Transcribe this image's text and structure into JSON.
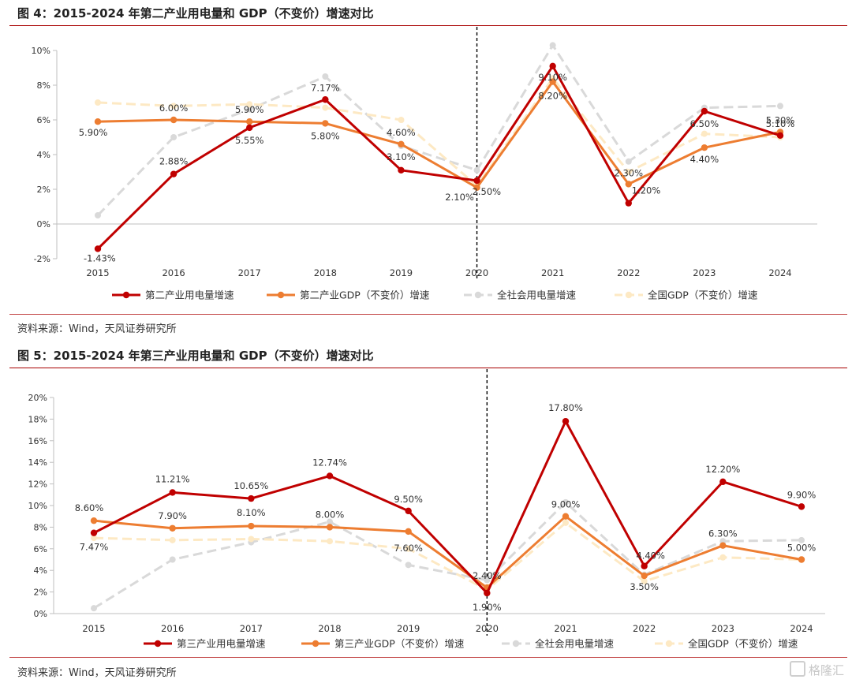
{
  "figures": [
    {
      "title": "图 4：2015-2024 年第二产业用电量和 GDP（不变价）增速对比",
      "source": "资料来源：Wind，天风证券研究所"
    },
    {
      "title": "图 5：2015-2024 年第三产业用电量和 GDP（不变价）增速对比",
      "source": "资料来源：Wind，天风证券研究所"
    }
  ],
  "watermark": "格隆汇",
  "chart_data": [
    {
      "type": "line",
      "title": "",
      "xlabel": "",
      "ylabel": "",
      "categories": [
        "2015",
        "2016",
        "2017",
        "2018",
        "2019",
        "2020",
        "2021",
        "2022",
        "2023",
        "2024"
      ],
      "ylim": [
        -2,
        10
      ],
      "yticks": [
        -2,
        0,
        2,
        4,
        6,
        8,
        10
      ],
      "ytick_labels": [
        "-2%",
        "0%",
        "2%",
        "4%",
        "6%",
        "8%",
        "10%"
      ],
      "divider_at": "2020",
      "legend_position": "bottom",
      "series": [
        {
          "name": "全社会用电量增速",
          "color": "#d9d9d9",
          "style": "dashed",
          "values": [
            0.5,
            5.0,
            6.6,
            8.5,
            4.5,
            3.1,
            10.3,
            3.6,
            6.7,
            6.8
          ]
        },
        {
          "name": "全国GDP（不变价）增速",
          "color": "#fde9c4",
          "style": "dashed",
          "values": [
            7.0,
            6.8,
            6.9,
            6.7,
            6.0,
            2.2,
            8.4,
            3.0,
            5.2,
            5.0
          ]
        },
        {
          "name": "第二产业GDP（不变价）增速",
          "color": "#ed7d31",
          "style": "solid",
          "values": [
            5.9,
            6.0,
            5.9,
            5.8,
            4.6,
            2.1,
            8.2,
            2.3,
            4.4,
            5.3
          ],
          "labels": [
            "5.90%",
            "6.00%",
            "5.90%",
            "5.80%",
            "4.60%",
            "2.10%",
            "8.20%",
            "2.30%",
            "4.40%",
            "5.30%"
          ]
        },
        {
          "name": "第二产业用电量增速",
          "color": "#c00000",
          "style": "solid",
          "values": [
            -1.43,
            2.88,
            5.55,
            7.17,
            3.1,
            2.5,
            9.1,
            1.2,
            6.5,
            5.1
          ],
          "labels": [
            "-1.43%",
            "2.88%",
            "5.55%",
            "7.17%",
            "3.10%",
            "2.50%",
            "9.10%",
            "1.20%",
            "6.50%",
            "5.10%"
          ]
        }
      ],
      "legend_order": [
        "第二产业用电量增速",
        "第二产业GDP（不变价）增速",
        "全社会用电量增速",
        "全国GDP（不变价）增速"
      ]
    },
    {
      "type": "line",
      "title": "",
      "xlabel": "",
      "ylabel": "",
      "categories": [
        "2015",
        "2016",
        "2017",
        "2018",
        "2019",
        "2020",
        "2021",
        "2022",
        "2023",
        "2024"
      ],
      "ylim": [
        0,
        20
      ],
      "yticks": [
        0,
        2,
        4,
        6,
        8,
        10,
        12,
        14,
        16,
        18,
        20
      ],
      "ytick_labels": [
        "0%",
        "2%",
        "4%",
        "6%",
        "8%",
        "10%",
        "12%",
        "14%",
        "16%",
        "18%",
        "20%"
      ],
      "divider_at": "2020",
      "legend_position": "bottom",
      "series": [
        {
          "name": "全社会用电量增速",
          "color": "#d9d9d9",
          "style": "dashed",
          "values": [
            0.5,
            5.0,
            6.6,
            8.5,
            4.5,
            3.1,
            10.3,
            3.6,
            6.7,
            6.8
          ]
        },
        {
          "name": "全国GDP（不变价）增速",
          "color": "#fde9c4",
          "style": "dashed",
          "values": [
            7.0,
            6.8,
            6.9,
            6.7,
            6.0,
            2.2,
            8.4,
            3.0,
            5.2,
            5.0
          ]
        },
        {
          "name": "第三产业GDP（不变价）增速",
          "color": "#ed7d31",
          "style": "solid",
          "values": [
            8.6,
            7.9,
            8.1,
            8.0,
            7.6,
            2.4,
            9.0,
            3.5,
            6.3,
            5.0
          ],
          "labels": [
            "8.60%",
            "7.90%",
            "8.10%",
            "8.00%",
            "7.60%",
            "2.40%",
            "9.00%",
            "3.50%",
            "6.30%",
            "5.00%"
          ]
        },
        {
          "name": "第三产业用电量增速",
          "color": "#c00000",
          "style": "solid",
          "values": [
            7.47,
            11.21,
            10.65,
            12.74,
            9.5,
            1.9,
            17.8,
            4.4,
            12.2,
            9.9
          ],
          "labels": [
            "7.47%",
            "11.21%",
            "10.65%",
            "12.74%",
            "9.50%",
            "1.90%",
            "17.80%",
            "4.40%",
            "12.20%",
            "9.90%"
          ]
        }
      ],
      "legend_order": [
        "第三产业用电量增速",
        "第三产业GDP（不变价）增速",
        "全社会用电量增速",
        "全国GDP（不变价）增速"
      ]
    }
  ]
}
